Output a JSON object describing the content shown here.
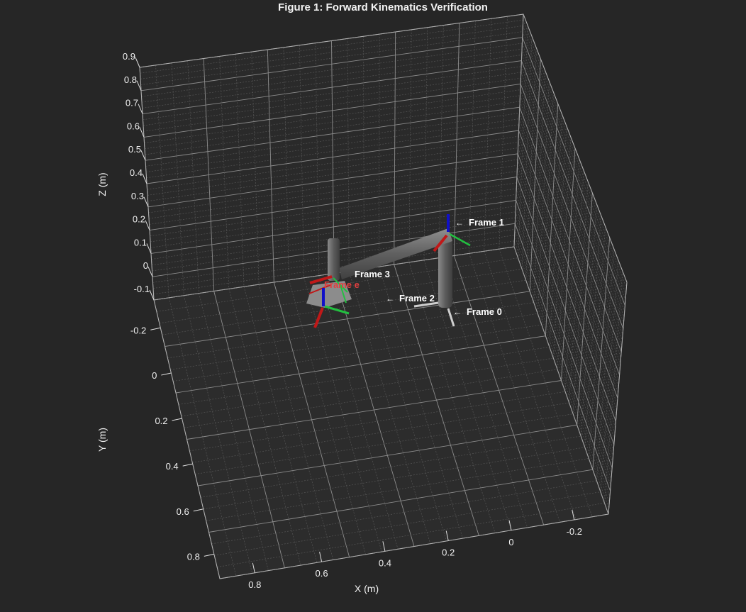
{
  "chart_data": {
    "type": "3d-robot-frames",
    "title": "Figure 1: Forward Kinematics Verification",
    "xlabel": "X (m)",
    "ylabel": "Y (m)",
    "zlabel": "Z (m)",
    "xlim": [
      -0.3,
      0.9
    ],
    "ylim": [
      -0.3,
      0.9
    ],
    "zlim": [
      -0.1,
      0.9
    ],
    "grid": true,
    "x_ticks": [
      "0.8",
      "0.6",
      "0.4",
      "0.2",
      "0",
      "-0.2"
    ],
    "y_ticks": [
      "-0.2",
      "0",
      "0.2",
      "0.4",
      "0.6",
      "0.8"
    ],
    "z_ticks": [
      "-0.1",
      "0",
      "0.1",
      "0.2",
      "0.3",
      "0.4",
      "0.5",
      "0.6",
      "0.7",
      "0.8",
      "0.9"
    ],
    "frames": [
      {
        "label": "Frame 0",
        "arrow": "←"
      },
      {
        "label": "Frame 1",
        "arrow": "←"
      },
      {
        "label": "Frame 2",
        "arrow": "←"
      },
      {
        "label": "Frame 3",
        "arrow": ""
      },
      {
        "label": "Frame e",
        "arrow": ""
      }
    ],
    "colors": {
      "background": "#262626",
      "grid": "#9a9a9a",
      "link": "#7a7a7a",
      "axis_x": "#c01818",
      "axis_y": "#22c040",
      "axis_z": "#1010c8",
      "end_effector_label": "#e04040"
    }
  }
}
